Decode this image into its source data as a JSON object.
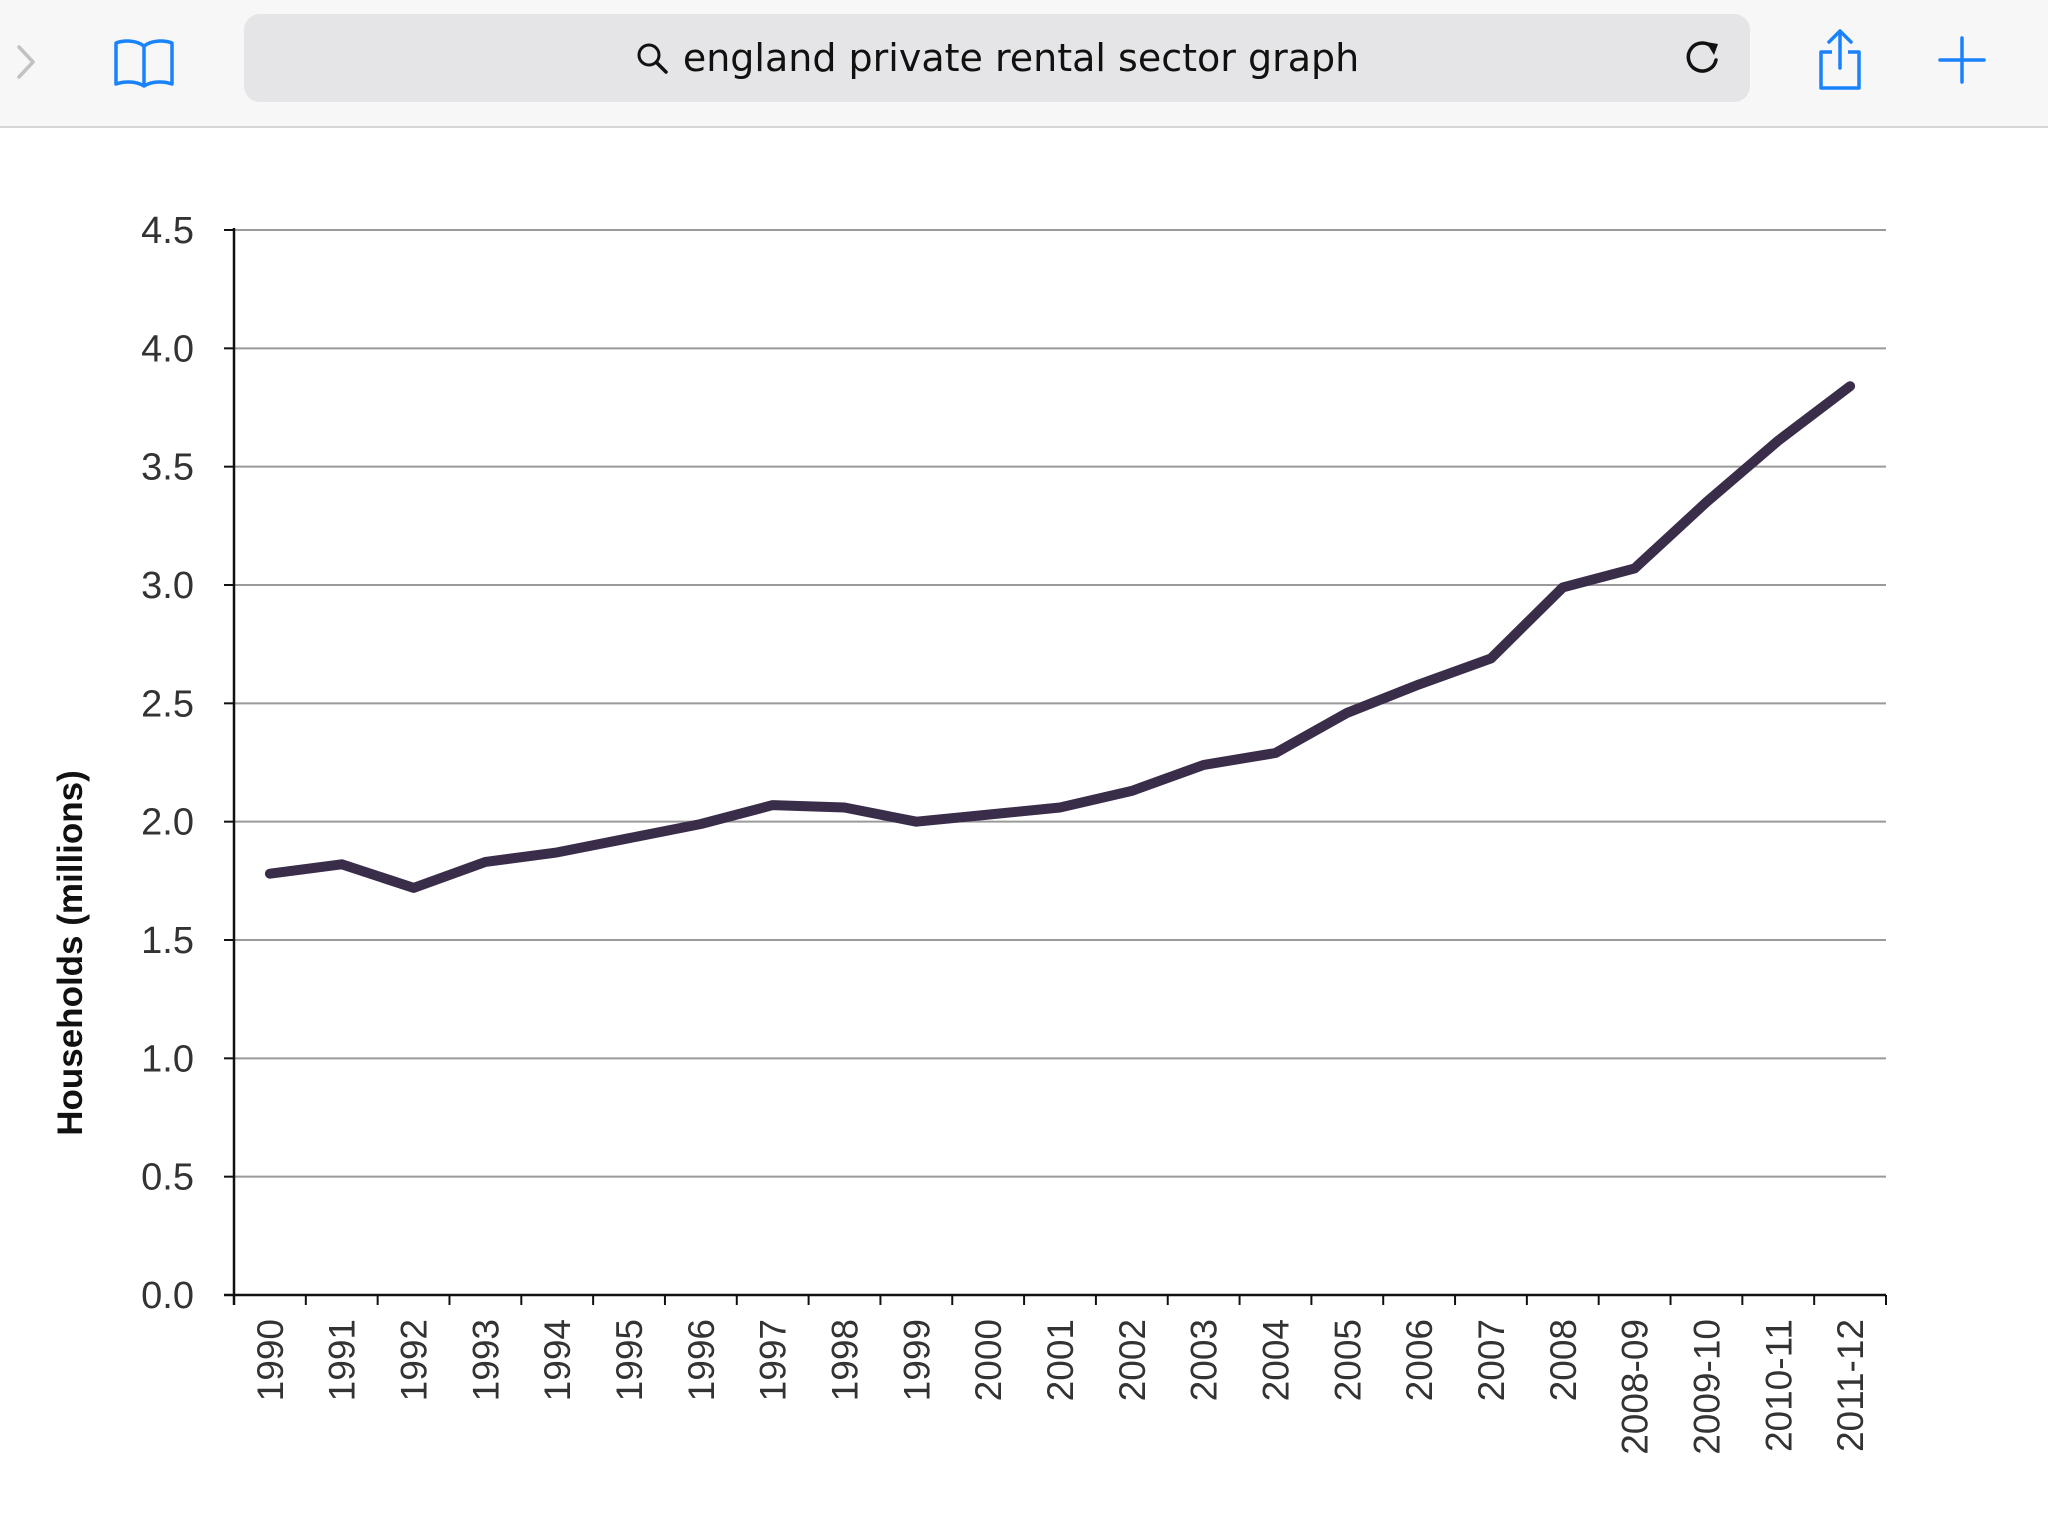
{
  "browser": {
    "url_text": "england private rental sector graph",
    "icons": {
      "forward": "chevron-right-icon",
      "bookmarks": "book-icon",
      "search": "search-icon",
      "reload": "reload-icon",
      "share": "share-icon",
      "new_tab": "plus-icon"
    },
    "accent_color": "#1a82fb"
  },
  "chart_data": {
    "type": "line",
    "title": "",
    "xlabel": "",
    "ylabel": "Households  (millions)",
    "ylim": [
      0,
      4.5
    ],
    "yticks": [
      "0.0",
      "0.5",
      "1.0",
      "1.5",
      "2.0",
      "2.5",
      "3.0",
      "3.5",
      "4.0",
      "4.5"
    ],
    "grid": true,
    "line_color": "#3a2d4a",
    "categories": [
      "1990",
      "1991",
      "1992",
      "1993",
      "1994",
      "1995",
      "1996",
      "1997",
      "1998",
      "1999",
      "2000",
      "2001",
      "2002",
      "2003",
      "2004",
      "2005",
      "2006",
      "2007",
      "2008",
      "2008-09",
      "2009-10",
      "2010-11",
      "2011-12"
    ],
    "series": [
      {
        "values": [
          1.78,
          1.82,
          1.72,
          1.83,
          1.87,
          1.93,
          1.99,
          2.07,
          2.06,
          2.0,
          2.03,
          2.06,
          2.13,
          2.24,
          2.29,
          2.46,
          2.58,
          2.69,
          2.99,
          3.07,
          3.35,
          3.61,
          3.84
        ]
      }
    ]
  }
}
